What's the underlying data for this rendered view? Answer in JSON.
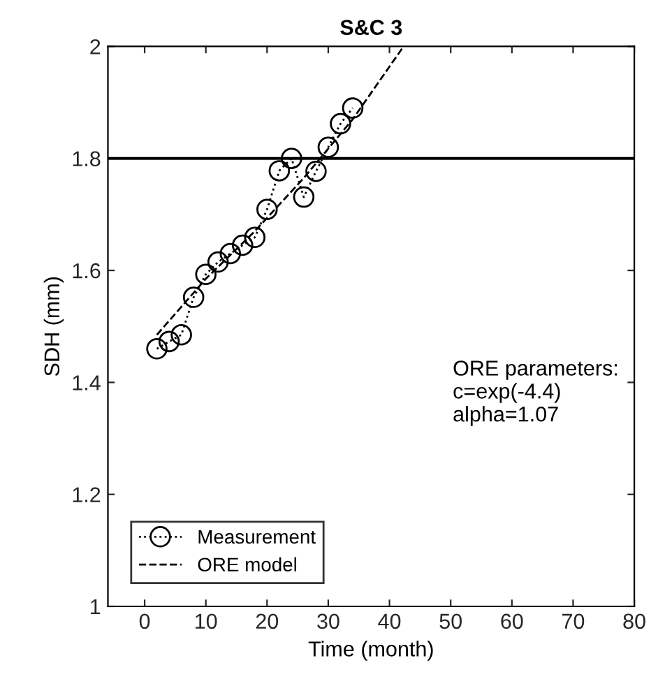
{
  "chart_data": {
    "type": "line",
    "title": "S&C 3",
    "xlabel": "Time (month)",
    "ylabel": "SDH (mm)",
    "xlim": [
      -6,
      80
    ],
    "xticks": [
      0,
      10,
      20,
      30,
      40,
      50,
      60,
      70,
      80
    ],
    "ylim": [
      1,
      2
    ],
    "yticks": [
      1,
      1.2,
      1.4,
      1.6,
      1.8,
      2
    ],
    "series": [
      {
        "name": "Measurement",
        "color": "#000000",
        "marker": "circle",
        "line_style": "dotted",
        "x": [
          2,
          4,
          6,
          8,
          10,
          12,
          14,
          16,
          18,
          20,
          22,
          24,
          26,
          28,
          30,
          32,
          34
        ],
        "values": [
          1.46,
          1.473,
          1.485,
          1.552,
          1.593,
          1.615,
          1.63,
          1.645,
          1.659,
          1.709,
          1.778,
          1.8,
          1.731,
          1.777,
          1.82,
          1.862,
          1.89
        ]
      },
      {
        "name": "ORE model",
        "color": "#000000",
        "marker": "none",
        "line_style": "dashed",
        "x": [
          2,
          10,
          18,
          26,
          34,
          42.3
        ],
        "values": [
          1.485,
          1.585,
          1.67,
          1.765,
          1.87,
          2.0
        ]
      }
    ],
    "ref_lines": [
      {
        "axis": "y",
        "value": 1.8,
        "color": "#000000",
        "line_style": "solid"
      }
    ],
    "annotations": [
      "ORE parameters:\nc=exp(-4.4)\nalpha=1.07"
    ],
    "legend": "bottom left",
    "grid": false
  }
}
